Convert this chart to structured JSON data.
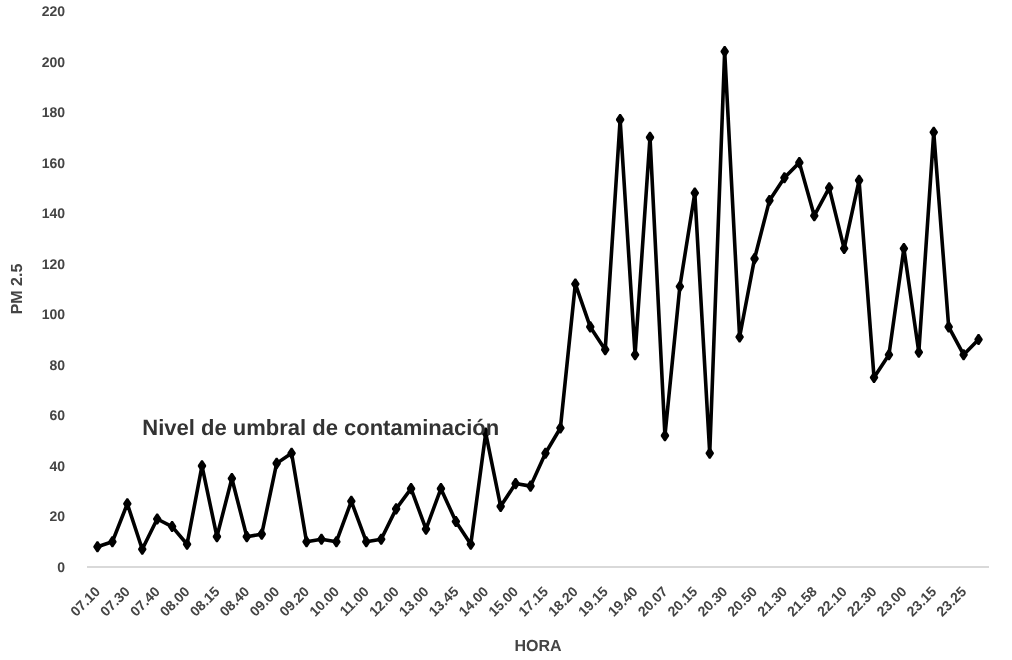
{
  "chart_data": {
    "type": "line",
    "xlabel": "HORA",
    "ylabel": "PM 2.5",
    "categories": [
      "07.10",
      null,
      "07.30",
      null,
      "07.40",
      null,
      "08.00",
      null,
      "08.15",
      null,
      "08.40",
      null,
      "09.00",
      null,
      "09.20",
      null,
      "10.00",
      null,
      "11.00",
      null,
      "12.00",
      null,
      "13.00",
      null,
      "13.45",
      null,
      "14.00",
      null,
      "15.00",
      null,
      "17.15",
      null,
      "18.20",
      null,
      "19.15",
      null,
      "19.40",
      null,
      "20.07",
      null,
      "20.15",
      null,
      "20.30",
      null,
      "20.50",
      null,
      "21.30",
      null,
      "21.58",
      null,
      "22.10",
      null,
      "22.30",
      null,
      "23.00",
      null,
      "23.15",
      null,
      "23.25",
      null
    ],
    "series": [
      {
        "color": "#000000",
        "values": [
          8,
          10,
          25,
          7,
          19,
          16,
          9,
          40,
          12,
          35,
          12,
          13,
          41,
          45,
          10,
          11,
          10,
          26,
          10,
          11,
          23,
          31,
          15,
          31,
          18,
          9,
          53,
          24,
          33,
          32,
          45,
          55,
          112,
          95,
          86,
          177,
          84,
          170,
          52,
          111,
          148,
          45,
          204,
          91,
          122,
          145,
          154,
          160,
          139,
          150,
          126,
          153,
          75,
          84,
          126,
          85,
          172,
          95,
          84,
          90
        ]
      }
    ],
    "ylim": [
      0,
      220
    ],
    "yticks": [
      0,
      20,
      40,
      60,
      80,
      100,
      120,
      140,
      160,
      180,
      200,
      220
    ],
    "annotations": [
      "Nivel de umbral de contaminación"
    ],
    "marker": "diamond",
    "line_style": "solid",
    "grid": false
  }
}
